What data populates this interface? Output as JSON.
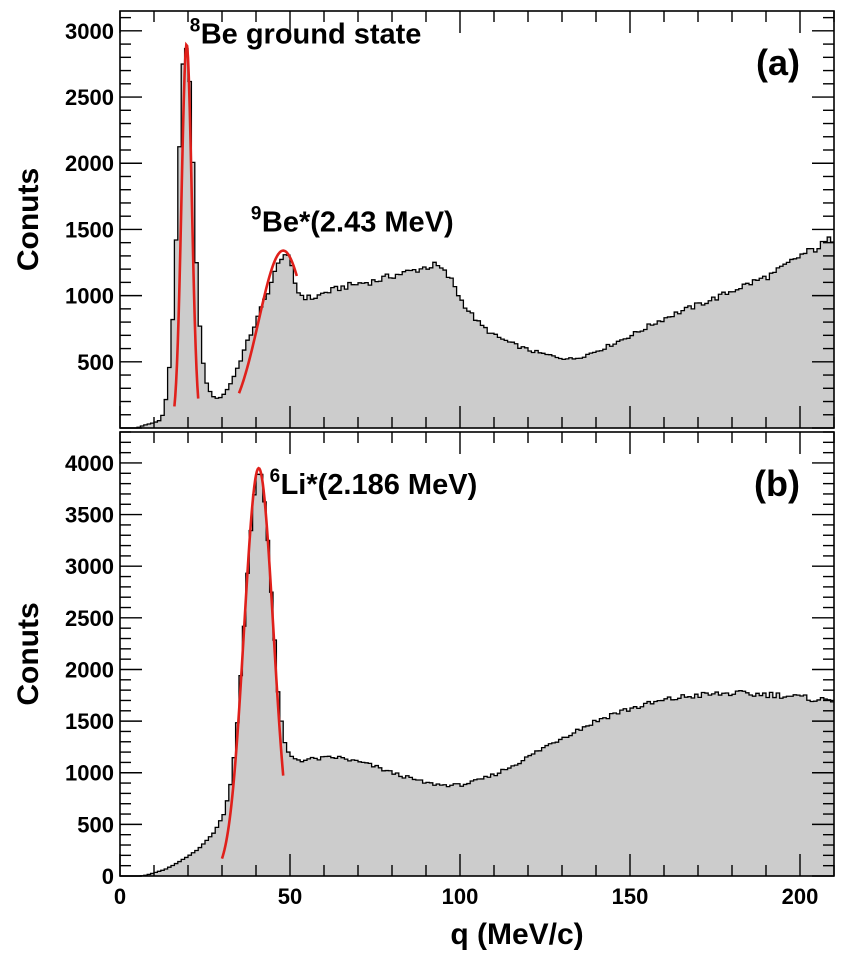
{
  "colors": {
    "fill": "#cccccc",
    "outline": "#000000",
    "fit": "#e0201b",
    "frame": "#000000"
  },
  "chart_data": [
    {
      "type": "histogram",
      "panel_label": "(a)",
      "ylabel": "Conuts",
      "xlabel": "",
      "xlim": [
        0,
        210
      ],
      "ylim": [
        0,
        3150
      ],
      "xticks": [
        0,
        50,
        100,
        150,
        200
      ],
      "yticks": [
        500,
        1000,
        1500,
        2000,
        2500,
        3000
      ],
      "ytick_labels": [
        "500",
        "1000",
        "1500",
        "2000",
        "2500",
        "3000"
      ],
      "bin_width": 1,
      "keypoints": [
        [
          5,
          0
        ],
        [
          7,
          20
        ],
        [
          10,
          40
        ],
        [
          12,
          60
        ],
        [
          13,
          130
        ],
        [
          14,
          300
        ],
        [
          15,
          600
        ],
        [
          16,
          1050
        ],
        [
          17,
          1800
        ],
        [
          18,
          2500
        ],
        [
          19,
          2880
        ],
        [
          20,
          2800
        ],
        [
          21,
          2350
        ],
        [
          22,
          1600
        ],
        [
          23,
          950
        ],
        [
          24,
          580
        ],
        [
          25,
          380
        ],
        [
          26,
          300
        ],
        [
          27,
          250
        ],
        [
          28,
          225
        ],
        [
          29,
          222
        ],
        [
          30,
          240
        ],
        [
          31,
          270
        ],
        [
          32,
          310
        ],
        [
          33,
          360
        ],
        [
          35,
          480
        ],
        [
          37,
          620
        ],
        [
          40,
          800
        ],
        [
          43,
          1000
        ],
        [
          46,
          1200
        ],
        [
          48,
          1330
        ],
        [
          50,
          1260
        ],
        [
          52,
          1040
        ],
        [
          54,
          990
        ],
        [
          57,
          980
        ],
        [
          60,
          1020
        ],
        [
          65,
          1060
        ],
        [
          70,
          1090
        ],
        [
          75,
          1110
        ],
        [
          80,
          1150
        ],
        [
          85,
          1180
        ],
        [
          90,
          1215
        ],
        [
          93,
          1230
        ],
        [
          95,
          1190
        ],
        [
          98,
          1100
        ],
        [
          100,
          980
        ],
        [
          103,
          870
        ],
        [
          106,
          780
        ],
        [
          110,
          700
        ],
        [
          115,
          640
        ],
        [
          120,
          590
        ],
        [
          125,
          555
        ],
        [
          130,
          530
        ],
        [
          133,
          520
        ],
        [
          137,
          550
        ],
        [
          142,
          600
        ],
        [
          147,
          660
        ],
        [
          152,
          720
        ],
        [
          157,
          790
        ],
        [
          162,
          850
        ],
        [
          167,
          900
        ],
        [
          172,
          950
        ],
        [
          177,
          1000
        ],
        [
          182,
          1060
        ],
        [
          187,
          1110
        ],
        [
          192,
          1160
        ],
        [
          196,
          1230
        ],
        [
          200,
          1300
        ],
        [
          205,
          1360
        ],
        [
          210,
          1440
        ]
      ],
      "fits": [
        {
          "x": [
            16,
            23
          ],
          "mu": 19.6,
          "sigma": 1.5,
          "amplitude": 2900
        },
        {
          "x": [
            35,
            52
          ],
          "mu": 48,
          "sigma": 7.2,
          "amplitude": 1340
        }
      ],
      "annotations": [
        {
          "sup": "8",
          "text": "Be ground state",
          "x": 20.5,
          "y": 2920
        },
        {
          "sup": "9",
          "text": "Be*(2.43 MeV)",
          "x": 38.5,
          "y": 1500
        }
      ]
    },
    {
      "type": "histogram",
      "panel_label": "(b)",
      "ylabel": "Conuts",
      "xlabel": "q (MeV/c)",
      "xlim": [
        0,
        210
      ],
      "ylim": [
        0,
        4300
      ],
      "xticks": [
        0,
        50,
        100,
        150,
        200
      ],
      "xtick_labels": [
        "0",
        "50",
        "100",
        "150",
        "200"
      ],
      "yticks": [
        0,
        500,
        1000,
        1500,
        2000,
        2500,
        3000,
        3500,
        4000
      ],
      "ytick_labels": [
        "0",
        "500",
        "1000",
        "1500",
        "2000",
        "2500",
        "3000",
        "3500",
        "4000"
      ],
      "bin_width": 1,
      "keypoints": [
        [
          6,
          0
        ],
        [
          8,
          10
        ],
        [
          10,
          30
        ],
        [
          13,
          60
        ],
        [
          16,
          110
        ],
        [
          20,
          190
        ],
        [
          23,
          260
        ],
        [
          26,
          360
        ],
        [
          28,
          440
        ],
        [
          30,
          560
        ],
        [
          31,
          650
        ],
        [
          32,
          800
        ],
        [
          33,
          1000
        ],
        [
          34,
          1300
        ],
        [
          35,
          1700
        ],
        [
          36,
          2150
        ],
        [
          37,
          2650
        ],
        [
          38,
          3150
        ],
        [
          39,
          3550
        ],
        [
          40,
          3850
        ],
        [
          41,
          3950
        ],
        [
          42,
          3850
        ],
        [
          43,
          3500
        ],
        [
          44,
          3000
        ],
        [
          45,
          2500
        ],
        [
          46,
          2000
        ],
        [
          47,
          1600
        ],
        [
          48,
          1350
        ],
        [
          49,
          1220
        ],
        [
          50,
          1160
        ],
        [
          53,
          1120
        ],
        [
          56,
          1130
        ],
        [
          60,
          1140
        ],
        [
          64,
          1150
        ],
        [
          68,
          1120
        ],
        [
          72,
          1090
        ],
        [
          75,
          1060
        ],
        [
          80,
          1000
        ],
        [
          85,
          950
        ],
        [
          90,
          900
        ],
        [
          95,
          880
        ],
        [
          100,
          880
        ],
        [
          105,
          920
        ],
        [
          110,
          980
        ],
        [
          115,
          1060
        ],
        [
          120,
          1150
        ],
        [
          125,
          1250
        ],
        [
          130,
          1340
        ],
        [
          135,
          1420
        ],
        [
          140,
          1500
        ],
        [
          145,
          1570
        ],
        [
          150,
          1620
        ],
        [
          155,
          1660
        ],
        [
          160,
          1700
        ],
        [
          165,
          1730
        ],
        [
          170,
          1750
        ],
        [
          175,
          1760
        ],
        [
          180,
          1770
        ],
        [
          185,
          1760
        ],
        [
          190,
          1760
        ],
        [
          195,
          1750
        ],
        [
          200,
          1730
        ],
        [
          205,
          1710
        ],
        [
          210,
          1700
        ]
      ],
      "fits": [
        {
          "x": [
            30,
            48
          ],
          "mu": 40.8,
          "sigma": 4.3,
          "amplitude": 3950
        }
      ],
      "annotations": [
        {
          "sup": "6",
          "text": "Li*(2.186 MeV)",
          "x": 44,
          "y": 3720
        }
      ]
    }
  ]
}
